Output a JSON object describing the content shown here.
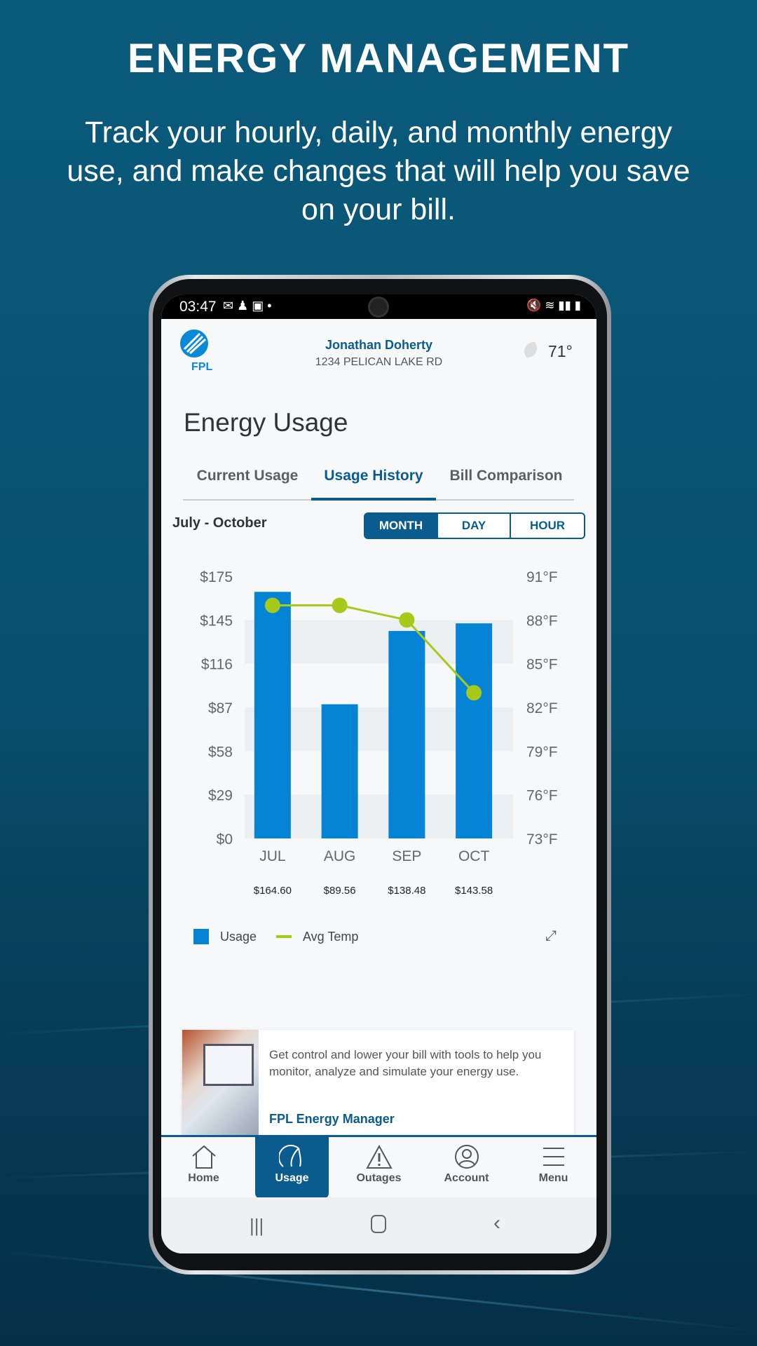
{
  "hero": {
    "title": "ENERGY MANAGEMENT",
    "subtitle": "Track your hourly, daily, and monthly energy use, and make changes that will help you save on your bill."
  },
  "status_bar": {
    "time": "03:47"
  },
  "header": {
    "logo_text": "FPL",
    "name": "Jonathan Doherty",
    "address": "1234 PELICAN LAKE RD",
    "weather": "71°",
    "weather_icon": "moon-cloud-icon"
  },
  "page": {
    "title": "Energy Usage"
  },
  "tabs": [
    {
      "label": "Current Usage"
    },
    {
      "label": "Usage History",
      "active": true
    },
    {
      "label": "Bill Comparison"
    }
  ],
  "range_label": "July - October",
  "period_toggle": {
    "options": [
      "MONTH",
      "DAY",
      "HOUR"
    ],
    "selected": "MONTH"
  },
  "colors": {
    "primary": "#0b5c8e",
    "bar": "#0584d6",
    "line": "#a6c91a"
  },
  "chart_data": {
    "type": "bar",
    "categories": [
      "JUL",
      "AUG",
      "SEP",
      "OCT"
    ],
    "y_ticks": [
      "$0",
      "$29",
      "$58",
      "$87",
      "$116",
      "$145",
      "$175"
    ],
    "y2_ticks": [
      "73°F",
      "76°F",
      "79°F",
      "82°F",
      "85°F",
      "88°F",
      "91°F"
    ],
    "ylim": [
      0,
      175
    ],
    "y2lim": [
      73,
      91
    ],
    "series": [
      {
        "name": "Usage",
        "type": "bar",
        "values": [
          164.6,
          89.56,
          138.48,
          143.58
        ],
        "labels": [
          "$164.60",
          "$89.56",
          "$138.48",
          "$143.58"
        ]
      },
      {
        "name": "Avg Temp",
        "type": "line",
        "values": [
          89,
          89,
          88,
          83
        ]
      }
    ],
    "legend": "bottom-left",
    "grid": "alternating bands"
  },
  "promo": {
    "text": "Get control and lower your bill with tools to help you monitor, analyze and simulate your energy use.",
    "link": "FPL Energy Manager"
  },
  "bottom_nav": [
    {
      "label": "Home",
      "icon": "home-icon"
    },
    {
      "label": "Usage",
      "icon": "gauge-icon",
      "active": true
    },
    {
      "label": "Outages",
      "icon": "warning-icon"
    },
    {
      "label": "Account",
      "icon": "user-circle-icon"
    },
    {
      "label": "Menu",
      "icon": "menu-icon"
    }
  ]
}
